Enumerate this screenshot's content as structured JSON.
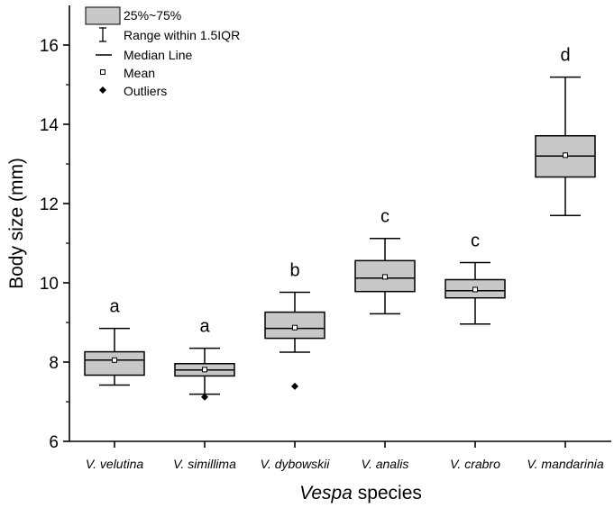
{
  "chart_data": {
    "type": "box",
    "ylabel": "Body size (mm)",
    "xlabel": {
      "italic_part": "Vespa",
      "rest": " species"
    },
    "ylim": [
      6,
      17
    ],
    "yticks": [
      6,
      8,
      10,
      12,
      14,
      16
    ],
    "categories": [
      "V. velutina",
      "V. simillima",
      "V. dybowskii",
      "V. analis",
      "V. crabro",
      "V. mandarinia"
    ],
    "boxes": [
      {
        "category": "V. velutina",
        "whisker_low": 7.42,
        "q1": 7.67,
        "median": 8.05,
        "q3": 8.26,
        "whisker_high": 8.85,
        "mean": 8.05,
        "outliers": [],
        "group": "a"
      },
      {
        "category": "V. simillima",
        "whisker_low": 7.19,
        "q1": 7.65,
        "median": 7.8,
        "q3": 7.96,
        "whisker_high": 8.35,
        "mean": 7.81,
        "outliers": [
          7.12
        ],
        "group": "a"
      },
      {
        "category": "V. dybowskii",
        "whisker_low": 8.25,
        "q1": 8.6,
        "median": 8.85,
        "q3": 9.26,
        "whisker_high": 9.76,
        "mean": 8.87,
        "outliers": [
          7.39
        ],
        "group": "b"
      },
      {
        "category": "V. analis",
        "whisker_low": 9.22,
        "q1": 9.78,
        "median": 10.12,
        "q3": 10.56,
        "whisker_high": 11.12,
        "mean": 10.15,
        "outliers": [],
        "group": "c"
      },
      {
        "category": "V. crabro",
        "whisker_low": 8.96,
        "q1": 9.62,
        "median": 9.8,
        "q3": 10.08,
        "whisker_high": 10.51,
        "mean": 9.83,
        "outliers": [],
        "group": "c"
      },
      {
        "category": "V. mandarinia",
        "whisker_low": 11.7,
        "q1": 12.67,
        "median": 13.2,
        "q3": 13.71,
        "whisker_high": 15.19,
        "mean": 13.22,
        "outliers": [],
        "group": "d"
      }
    ],
    "box_fill": "#c8c8c8",
    "legend": {
      "position": "top-left",
      "items": [
        {
          "symbol": "box",
          "label": "25%~75%"
        },
        {
          "symbol": "whisker",
          "label": "Range within 1.5IQR"
        },
        {
          "symbol": "line",
          "label": "Median Line"
        },
        {
          "symbol": "square",
          "label": "Mean"
        },
        {
          "symbol": "diamond",
          "label": "Outliers"
        }
      ]
    }
  }
}
